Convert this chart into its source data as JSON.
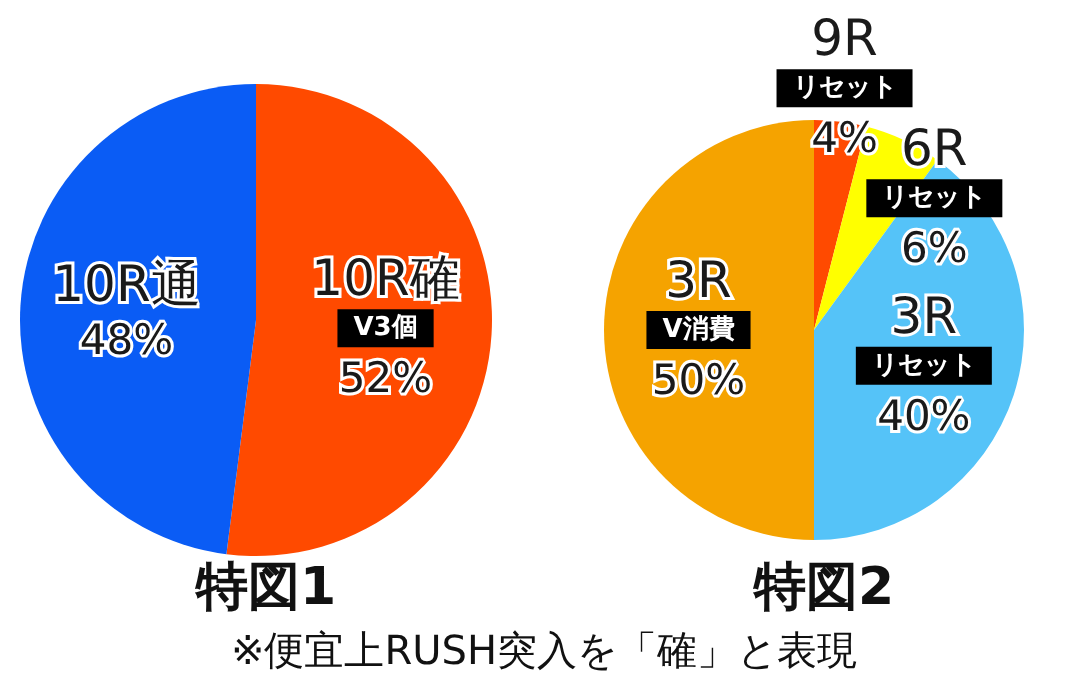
{
  "chart_data": [
    {
      "type": "pie",
      "title": "特図1",
      "categories": [
        "10R確\nV3個",
        "10R通"
      ],
      "values": [
        52,
        48
      ],
      "value_labels": [
        "52%",
        "48%"
      ],
      "colors": [
        "#ff4a00",
        "#0a5cf5"
      ]
    },
    {
      "type": "pie",
      "title": "特図2",
      "categories": [
        "9R\nリセット",
        "6R\nリセット",
        "3R\nリセット",
        "3R\nV消費"
      ],
      "values": [
        4,
        6,
        40,
        50
      ],
      "value_labels": [
        "4%",
        "6%",
        "40%",
        "50%"
      ],
      "colors": [
        "#ff4a00",
        "#ffff00",
        "#55c3f8",
        "#f5a300"
      ],
      "annotations": [
        "※便宜上RUSH突入を「確」と表現"
      ]
    }
  ]
}
